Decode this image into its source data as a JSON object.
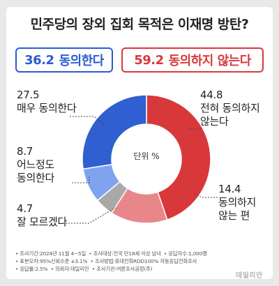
{
  "title": "민주당의 장외 집회 목적은 이재명 방탄?",
  "summary": {
    "agree": {
      "value": "36.2",
      "label": "동의한다"
    },
    "disagree": {
      "value": "59.2",
      "label": "동의하지 않는다"
    }
  },
  "chart_data": {
    "type": "pie",
    "center_label": "단위 %",
    "slices": [
      {
        "name": "전혀 동의하지 않는다",
        "value": 44.8,
        "color": "#d9383b"
      },
      {
        "name": "동의하지 않는 편",
        "value": 14.4,
        "color": "#e8878a"
      },
      {
        "name": "잘 모르겠다",
        "value": 4.7,
        "color": "#a9a9a9"
      },
      {
        "name": "어느정도 동의한다",
        "value": 8.7,
        "color": "#7fa3ee"
      },
      {
        "name": "매우 동의한다",
        "value": 27.5,
        "color": "#2f5fd0"
      }
    ]
  },
  "labels": {
    "very_agree": {
      "value": "27.5",
      "line1": "매우 동의한다",
      "line2": ""
    },
    "somewhat_agree": {
      "value": "8.7",
      "line1": "어느정도",
      "line2": "동의한다"
    },
    "dont_know": {
      "value": "4.7",
      "line1": "잘 모르겠다",
      "line2": ""
    },
    "strongly_disagree": {
      "value": "44.8",
      "line1": "전혀 동의하지",
      "line2": "않는다"
    },
    "somewhat_disagree": {
      "value": "14.4",
      "line1": "동의하지",
      "line2": "않는 편"
    }
  },
  "notes": {
    "n1": "• 조사기간:2024년 11월 4~5일",
    "n2": "• 조사대상:전국 만18세 이상 남녀",
    "n3": "• 응답자수:1,000명",
    "n4": "• 표본오차:95%신뢰수준 ±3.1%",
    "n5": "• 조사방법:휴대전화RDD100% 자동응답전화조사",
    "n6": "• 응답률:2.5%",
    "n7": "• 의뢰자:데일리안",
    "n8": "• 조사기관:여론조사공정(주)"
  },
  "logo": "데일리안"
}
